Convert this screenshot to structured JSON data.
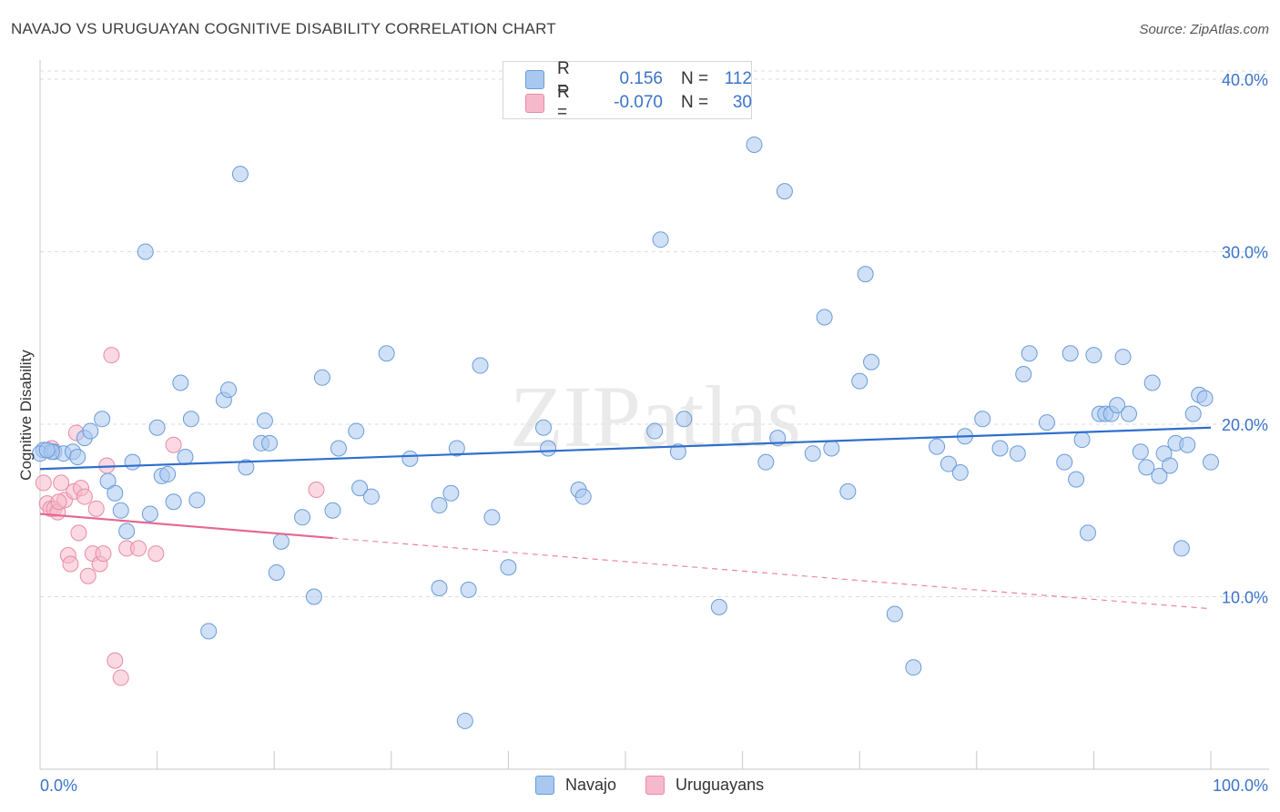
{
  "title": "NAVAJO VS URUGUAYAN COGNITIVE DISABILITY CORRELATION CHART",
  "source": "Source: ZipAtlas.com",
  "watermark": "ZIPatlas",
  "legend": {
    "rows": [
      {
        "r_label": "R =",
        "r_value": "0.156",
        "n_label": "N =",
        "n_value": "112",
        "color": "#a9c8f0",
        "border": "#6a9bd8"
      },
      {
        "r_label": "R =",
        "r_value": "-0.070",
        "n_label": "N =",
        "n_value": "30",
        "color": "#f6b9cb",
        "border": "#e98aa6"
      }
    ]
  },
  "bottom_legend": [
    {
      "label": "Navajo",
      "color": "#a9c8f0",
      "border": "#6a9bd8"
    },
    {
      "label": "Uruguayans",
      "color": "#f6b9cb",
      "border": "#e98aa6"
    }
  ],
  "chart_data": {
    "type": "scatter",
    "title": "NAVAJO VS URUGUAYAN COGNITIVE DISABILITY CORRELATION CHART",
    "xlabel": "",
    "ylabel": "Cognitive Disability",
    "xlim": [
      0,
      100
    ],
    "ylim": [
      0,
      41
    ],
    "x_tick_labels": [
      "0.0%",
      "100.0%"
    ],
    "y_ticks": [
      10,
      20,
      30,
      40
    ],
    "y_tick_labels": [
      "10.0%",
      "20.0%",
      "30.0%",
      "40.0%"
    ],
    "grid": true,
    "series": [
      {
        "name": "Navajo",
        "color": "#a9c8f0",
        "stroke": "#6a9bd8",
        "points": [
          [
            0.3,
            18.5
          ],
          [
            1.2,
            18.4
          ],
          [
            2.0,
            18.3
          ],
          [
            2.8,
            18.4
          ],
          [
            3.2,
            18.1
          ],
          [
            3.8,
            19.2
          ],
          [
            4.3,
            19.6
          ],
          [
            5.3,
            20.3
          ],
          [
            5.8,
            16.7
          ],
          [
            6.4,
            16.0
          ],
          [
            6.9,
            15.0
          ],
          [
            7.4,
            13.8
          ],
          [
            7.9,
            17.8
          ],
          [
            9.0,
            30.0
          ],
          [
            9.4,
            14.8
          ],
          [
            10.0,
            19.8
          ],
          [
            10.4,
            17.0
          ],
          [
            10.9,
            17.1
          ],
          [
            11.4,
            15.5
          ],
          [
            12.0,
            22.4
          ],
          [
            12.4,
            18.1
          ],
          [
            12.9,
            20.3
          ],
          [
            13.4,
            15.6
          ],
          [
            14.4,
            8.0
          ],
          [
            15.7,
            21.4
          ],
          [
            16.1,
            22.0
          ],
          [
            17.1,
            34.5
          ],
          [
            17.6,
            17.5
          ],
          [
            18.9,
            18.9
          ],
          [
            19.2,
            20.2
          ],
          [
            19.6,
            18.9
          ],
          [
            20.2,
            11.4
          ],
          [
            20.6,
            13.2
          ],
          [
            22.4,
            14.6
          ],
          [
            23.4,
            10.0
          ],
          [
            24.1,
            22.7
          ],
          [
            25.0,
            15.0
          ],
          [
            25.5,
            18.6
          ],
          [
            27.0,
            19.6
          ],
          [
            27.3,
            16.3
          ],
          [
            28.3,
            15.8
          ],
          [
            29.6,
            24.1
          ],
          [
            31.6,
            18.0
          ],
          [
            34.1,
            10.5
          ],
          [
            34.1,
            15.3
          ],
          [
            35.1,
            16.0
          ],
          [
            35.6,
            18.6
          ],
          [
            36.3,
            2.8
          ],
          [
            36.6,
            10.4
          ],
          [
            37.6,
            23.4
          ],
          [
            38.6,
            14.6
          ],
          [
            40.0,
            11.7
          ],
          [
            43.0,
            19.8
          ],
          [
            43.4,
            18.6
          ],
          [
            46.0,
            16.2
          ],
          [
            46.4,
            15.8
          ],
          [
            52.5,
            19.6
          ],
          [
            53.0,
            30.7
          ],
          [
            54.5,
            18.4
          ],
          [
            55.0,
            20.3
          ],
          [
            58.0,
            9.4
          ],
          [
            61.0,
            36.2
          ],
          [
            62.0,
            17.8
          ],
          [
            63.0,
            19.2
          ],
          [
            63.6,
            33.5
          ],
          [
            66.0,
            18.3
          ],
          [
            67.0,
            26.2
          ],
          [
            67.6,
            18.6
          ],
          [
            69.0,
            16.1
          ],
          [
            70.0,
            22.5
          ],
          [
            70.5,
            28.7
          ],
          [
            71.0,
            23.6
          ],
          [
            73.0,
            9.0
          ],
          [
            74.6,
            5.9
          ],
          [
            76.6,
            18.7
          ],
          [
            77.6,
            17.7
          ],
          [
            78.6,
            17.2
          ],
          [
            79.0,
            19.3
          ],
          [
            80.5,
            20.3
          ],
          [
            82.0,
            18.6
          ],
          [
            83.5,
            18.3
          ],
          [
            84.0,
            22.9
          ],
          [
            84.5,
            24.1
          ],
          [
            86.0,
            20.1
          ],
          [
            87.5,
            17.8
          ],
          [
            88.0,
            24.1
          ],
          [
            88.5,
            16.8
          ],
          [
            89.0,
            19.1
          ],
          [
            89.5,
            13.7
          ],
          [
            90.0,
            24.0
          ],
          [
            90.5,
            20.6
          ],
          [
            91.0,
            20.6
          ],
          [
            91.5,
            20.6
          ],
          [
            92.0,
            21.1
          ],
          [
            92.5,
            23.9
          ],
          [
            93.0,
            20.6
          ],
          [
            94.0,
            18.4
          ],
          [
            94.5,
            17.5
          ],
          [
            95.0,
            22.4
          ],
          [
            95.6,
            17.0
          ],
          [
            96.0,
            18.3
          ],
          [
            96.5,
            17.6
          ],
          [
            97.0,
            18.9
          ],
          [
            97.5,
            12.8
          ],
          [
            98.0,
            18.8
          ],
          [
            98.5,
            20.6
          ],
          [
            99.0,
            21.7
          ],
          [
            99.5,
            21.5
          ],
          [
            100.0,
            17.8
          ],
          [
            0.0,
            18.3
          ],
          [
            1.0,
            18.4
          ],
          [
            0.6,
            18.5
          ]
        ],
        "trend": {
          "x": [
            0,
            100
          ],
          "y": [
            17.4,
            19.8
          ],
          "dashed": false
        }
      },
      {
        "name": "Uruguayans",
        "color": "#f6b9cb",
        "stroke": "#e98aa6",
        "points": [
          [
            0.3,
            16.6
          ],
          [
            0.6,
            15.4
          ],
          [
            0.9,
            15.1
          ],
          [
            1.2,
            15.1
          ],
          [
            1.5,
            14.9
          ],
          [
            1.8,
            16.6
          ],
          [
            2.1,
            15.6
          ],
          [
            2.4,
            12.4
          ],
          [
            2.6,
            11.9
          ],
          [
            2.9,
            16.1
          ],
          [
            3.1,
            19.5
          ],
          [
            3.3,
            13.7
          ],
          [
            3.5,
            16.3
          ],
          [
            3.8,
            15.8
          ],
          [
            4.1,
            11.2
          ],
          [
            4.5,
            12.5
          ],
          [
            4.8,
            15.1
          ],
          [
            5.1,
            11.9
          ],
          [
            5.4,
            12.5
          ],
          [
            5.7,
            17.6
          ],
          [
            6.1,
            24.0
          ],
          [
            6.4,
            6.3
          ],
          [
            6.9,
            5.3
          ],
          [
            7.4,
            12.8
          ],
          [
            8.4,
            12.8
          ],
          [
            9.9,
            12.5
          ],
          [
            11.4,
            18.8
          ],
          [
            23.6,
            16.2
          ],
          [
            1.0,
            18.6
          ],
          [
            1.6,
            15.5
          ]
        ],
        "trend": {
          "x": [
            0,
            25
          ],
          "y": [
            14.8,
            13.4
          ],
          "dashed": false,
          "extension": {
            "x": [
              25,
              100
            ],
            "y": [
              13.4,
              9.3
            ],
            "dashed": true
          }
        }
      }
    ]
  }
}
